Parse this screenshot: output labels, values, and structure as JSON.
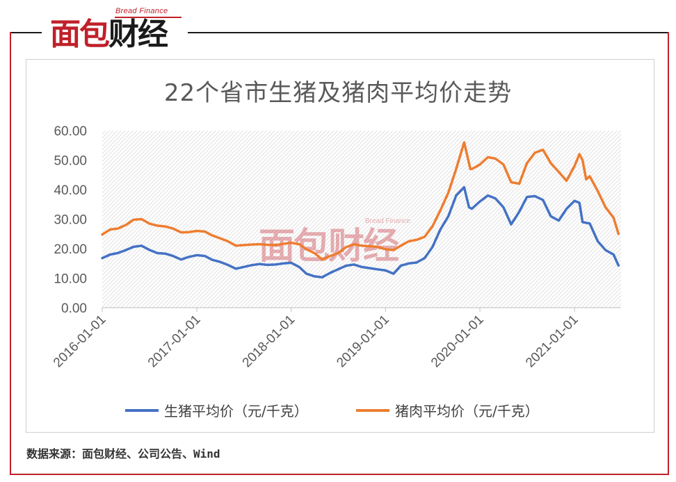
{
  "logo": {
    "brand_en": "Bread Finance",
    "name_part1": "面包",
    "name_part2": "财经"
  },
  "watermark": {
    "brand_en": "Bread Finance",
    "name": "面包财经"
  },
  "source_note": "数据来源：面包财经、公司公告、Wind",
  "colors": {
    "live_pig": "#4472c4",
    "pork": "#ed7d31",
    "frame_red": "#c0202a"
  },
  "chart_data": {
    "type": "line",
    "title": "22个省市生猪及猪肉平均价走势",
    "xlabel": "",
    "ylabel": "",
    "ylim": [
      0,
      60
    ],
    "y_ticks": [
      "0.00",
      "10.00",
      "20.00",
      "30.00",
      "40.00",
      "50.00",
      "60.00"
    ],
    "x_range": [
      "2016-01-01",
      "2021-06-30"
    ],
    "x_ticks": [
      "2016-01-01",
      "2017-01-01",
      "2018-01-01",
      "2019-01-01",
      "2020-01-01",
      "2021-01-01"
    ],
    "grid": false,
    "plot_area_fill": "hatched",
    "legend_position": "bottom",
    "series": [
      {
        "name": "生猪平均价（元/千克）",
        "color": "#4472c4",
        "points": [
          [
            "2016-01-01",
            16.8
          ],
          [
            "2016-02-01",
            18.0
          ],
          [
            "2016-03-01",
            18.5
          ],
          [
            "2016-04-01",
            19.5
          ],
          [
            "2016-05-01",
            20.6
          ],
          [
            "2016-06-01",
            21.0
          ],
          [
            "2016-07-01",
            19.6
          ],
          [
            "2016-08-01",
            18.5
          ],
          [
            "2016-09-01",
            18.3
          ],
          [
            "2016-10-01",
            17.5
          ],
          [
            "2016-11-01",
            16.3
          ],
          [
            "2016-12-01",
            17.2
          ],
          [
            "2017-01-01",
            17.8
          ],
          [
            "2017-02-01",
            17.5
          ],
          [
            "2017-03-01",
            16.2
          ],
          [
            "2017-04-01",
            15.5
          ],
          [
            "2017-05-01",
            14.5
          ],
          [
            "2017-06-01",
            13.2
          ],
          [
            "2017-07-01",
            13.8
          ],
          [
            "2017-08-01",
            14.4
          ],
          [
            "2017-09-01",
            14.8
          ],
          [
            "2017-10-01",
            14.5
          ],
          [
            "2017-11-01",
            14.6
          ],
          [
            "2017-12-01",
            15.0
          ],
          [
            "2018-01-01",
            15.2
          ],
          [
            "2018-02-01",
            13.8
          ],
          [
            "2018-03-01",
            11.5
          ],
          [
            "2018-04-01",
            10.6
          ],
          [
            "2018-05-01",
            10.3
          ],
          [
            "2018-06-01",
            11.8
          ],
          [
            "2018-07-01",
            13.0
          ],
          [
            "2018-08-01",
            14.2
          ],
          [
            "2018-09-01",
            14.6
          ],
          [
            "2018-10-01",
            13.8
          ],
          [
            "2018-11-01",
            13.4
          ],
          [
            "2018-12-01",
            13.0
          ],
          [
            "2019-01-01",
            12.6
          ],
          [
            "2019-02-01",
            11.5
          ],
          [
            "2019-03-01",
            14.2
          ],
          [
            "2019-04-01",
            15.0
          ],
          [
            "2019-05-01",
            15.3
          ],
          [
            "2019-06-01",
            16.8
          ],
          [
            "2019-07-01",
            20.5
          ],
          [
            "2019-08-01",
            26.5
          ],
          [
            "2019-09-01",
            31.0
          ],
          [
            "2019-10-01",
            38.0
          ],
          [
            "2019-11-01",
            40.8
          ],
          [
            "2019-11-20",
            34.0
          ],
          [
            "2019-12-01",
            33.5
          ],
          [
            "2020-01-01",
            36.0
          ],
          [
            "2020-02-01",
            38.0
          ],
          [
            "2020-03-01",
            37.0
          ],
          [
            "2020-04-01",
            34.0
          ],
          [
            "2020-05-01",
            28.2
          ],
          [
            "2020-06-01",
            32.5
          ],
          [
            "2020-07-01",
            37.5
          ],
          [
            "2020-08-01",
            37.8
          ],
          [
            "2020-09-01",
            36.5
          ],
          [
            "2020-10-01",
            31.0
          ],
          [
            "2020-11-01",
            29.5
          ],
          [
            "2020-12-01",
            33.5
          ],
          [
            "2021-01-01",
            36.2
          ],
          [
            "2021-01-20",
            35.5
          ],
          [
            "2021-02-01",
            29.0
          ],
          [
            "2021-03-01",
            28.5
          ],
          [
            "2021-04-01",
            22.5
          ],
          [
            "2021-05-01",
            19.5
          ],
          [
            "2021-06-01",
            18.0
          ],
          [
            "2021-06-20",
            14.3
          ]
        ]
      },
      {
        "name": "猪肉平均价（元/千克）",
        "color": "#ed7d31",
        "points": [
          [
            "2016-01-01",
            24.8
          ],
          [
            "2016-02-01",
            26.5
          ],
          [
            "2016-03-01",
            26.8
          ],
          [
            "2016-04-01",
            28.0
          ],
          [
            "2016-05-01",
            29.8
          ],
          [
            "2016-06-01",
            30.0
          ],
          [
            "2016-07-01",
            28.5
          ],
          [
            "2016-08-01",
            27.8
          ],
          [
            "2016-09-01",
            27.5
          ],
          [
            "2016-10-01",
            26.8
          ],
          [
            "2016-11-01",
            25.5
          ],
          [
            "2016-12-01",
            25.6
          ],
          [
            "2017-01-01",
            26.0
          ],
          [
            "2017-02-01",
            25.8
          ],
          [
            "2017-03-01",
            24.5
          ],
          [
            "2017-04-01",
            23.5
          ],
          [
            "2017-05-01",
            22.5
          ],
          [
            "2017-06-01",
            21.0
          ],
          [
            "2017-07-01",
            21.2
          ],
          [
            "2017-08-01",
            21.4
          ],
          [
            "2017-09-01",
            21.5
          ],
          [
            "2017-10-01",
            21.3
          ],
          [
            "2017-11-01",
            21.2
          ],
          [
            "2017-12-01",
            21.6
          ],
          [
            "2018-01-01",
            22.0
          ],
          [
            "2018-02-01",
            21.5
          ],
          [
            "2018-03-01",
            19.8
          ],
          [
            "2018-04-01",
            18.5
          ],
          [
            "2018-05-01",
            16.3
          ],
          [
            "2018-06-01",
            17.5
          ],
          [
            "2018-07-01",
            18.5
          ],
          [
            "2018-08-01",
            20.5
          ],
          [
            "2018-09-01",
            21.5
          ],
          [
            "2018-10-01",
            21.0
          ],
          [
            "2018-11-01",
            20.8
          ],
          [
            "2018-12-01",
            20.6
          ],
          [
            "2019-01-01",
            19.8
          ],
          [
            "2019-02-01",
            19.5
          ],
          [
            "2019-03-01",
            21.0
          ],
          [
            "2019-04-01",
            22.5
          ],
          [
            "2019-05-01",
            23.0
          ],
          [
            "2019-06-01",
            24.0
          ],
          [
            "2019-07-01",
            27.5
          ],
          [
            "2019-08-01",
            33.0
          ],
          [
            "2019-09-01",
            39.0
          ],
          [
            "2019-10-01",
            47.0
          ],
          [
            "2019-11-01",
            56.0
          ],
          [
            "2019-11-25",
            47.0
          ],
          [
            "2019-12-01",
            47.0
          ],
          [
            "2020-01-01",
            48.5
          ],
          [
            "2020-02-01",
            51.0
          ],
          [
            "2020-03-01",
            50.5
          ],
          [
            "2020-04-01",
            48.5
          ],
          [
            "2020-05-01",
            42.5
          ],
          [
            "2020-06-01",
            42.0
          ],
          [
            "2020-07-01",
            49.0
          ],
          [
            "2020-08-01",
            52.5
          ],
          [
            "2020-09-01",
            53.5
          ],
          [
            "2020-10-01",
            49.0
          ],
          [
            "2020-11-01",
            46.0
          ],
          [
            "2020-12-01",
            43.0
          ],
          [
            "2021-01-01",
            48.0
          ],
          [
            "2021-01-20",
            52.0
          ],
          [
            "2021-02-01",
            50.0
          ],
          [
            "2021-02-15",
            43.5
          ],
          [
            "2021-03-01",
            44.5
          ],
          [
            "2021-04-01",
            39.5
          ],
          [
            "2021-05-01",
            34.0
          ],
          [
            "2021-06-01",
            30.5
          ],
          [
            "2021-06-20",
            25.0
          ]
        ]
      }
    ]
  }
}
